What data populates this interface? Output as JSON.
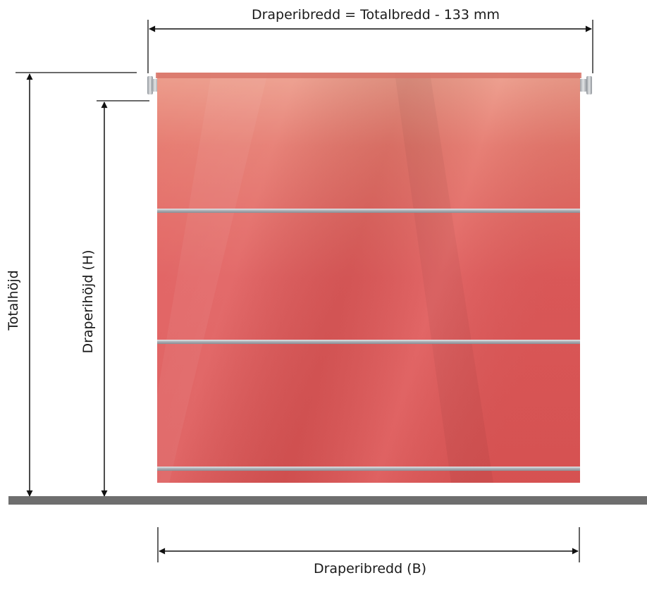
{
  "labels": {
    "top_width": "Draperibredd = Totalbredd - 133 mm",
    "total_height": "Totalhöjd",
    "drape_height": "Draperihöjd (H)",
    "drape_width": "Draperibredd (B)"
  },
  "colors": {
    "fabric": "#e05a5a",
    "fabric_dark": "#d44848",
    "fabric_light": "#ee9c8a",
    "rod": "#b8bcc2",
    "floor": "#6e6e6e",
    "line": "#111111"
  }
}
